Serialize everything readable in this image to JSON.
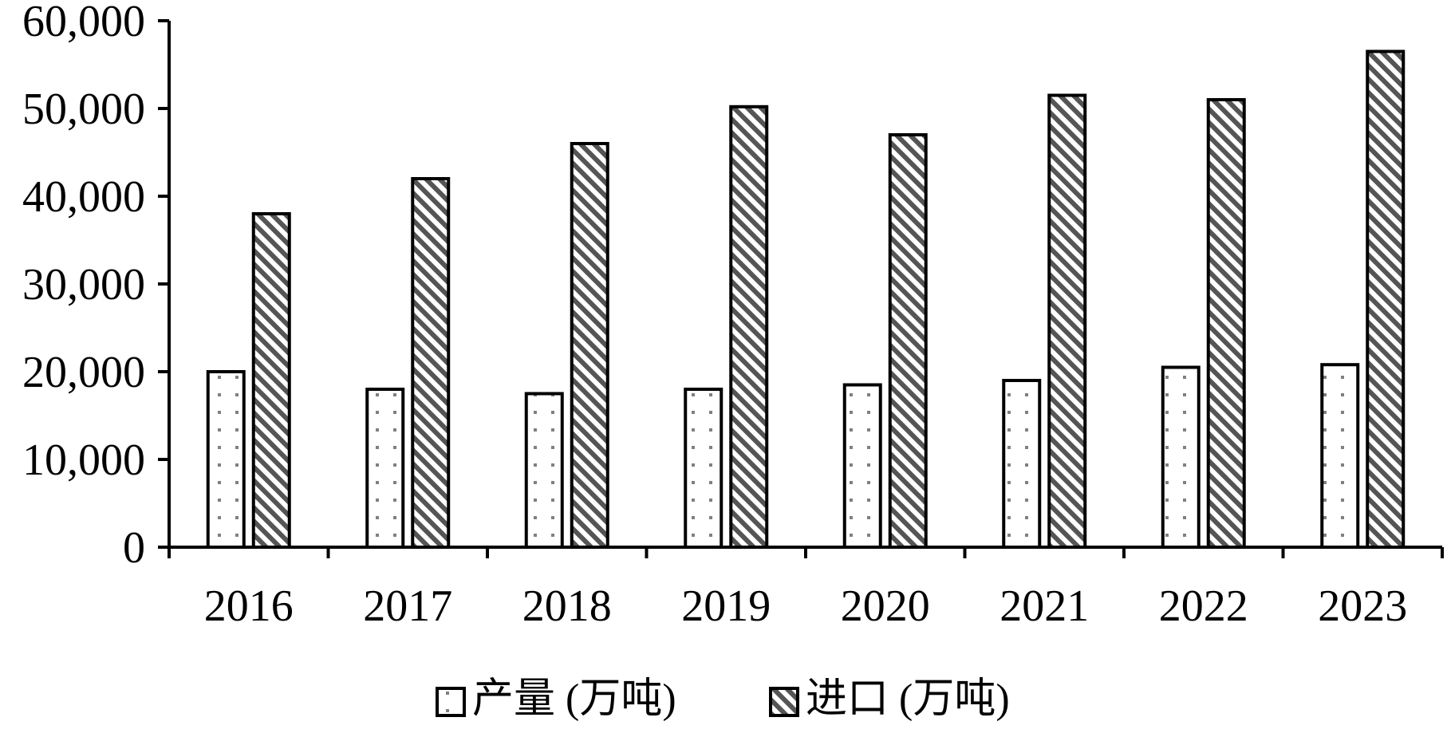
{
  "chart_data": {
    "type": "bar",
    "title": "",
    "xlabel": "",
    "ylabel": "",
    "categories": [
      "2016",
      "2017",
      "2018",
      "2019",
      "2020",
      "2021",
      "2022",
      "2023"
    ],
    "series": [
      {
        "name": "产量 (万吨)",
        "values": [
          20000,
          18000,
          17500,
          18000,
          18500,
          19000,
          20500,
          20800
        ],
        "pattern": "dots",
        "fill_color": "#ffffff",
        "pattern_color": "#808080"
      },
      {
        "name": "进口 (万吨)",
        "values": [
          38000,
          42000,
          46000,
          50200,
          47000,
          51500,
          51000,
          56500
        ],
        "pattern": "diagonal-hatch",
        "fill_color": "#ffffff",
        "pattern_color": "#555555"
      }
    ],
    "ylim": [
      0,
      60000
    ],
    "yticks": [
      0,
      10000,
      20000,
      30000,
      40000,
      50000,
      60000
    ],
    "ytick_labels": [
      "0",
      "10,000",
      "20,000",
      "30,000",
      "40,000",
      "50,000",
      "60,000"
    ],
    "grid": false,
    "legend_position": "bottom-center",
    "axis_color": "#000000",
    "bar_outline_color": "#000000"
  }
}
